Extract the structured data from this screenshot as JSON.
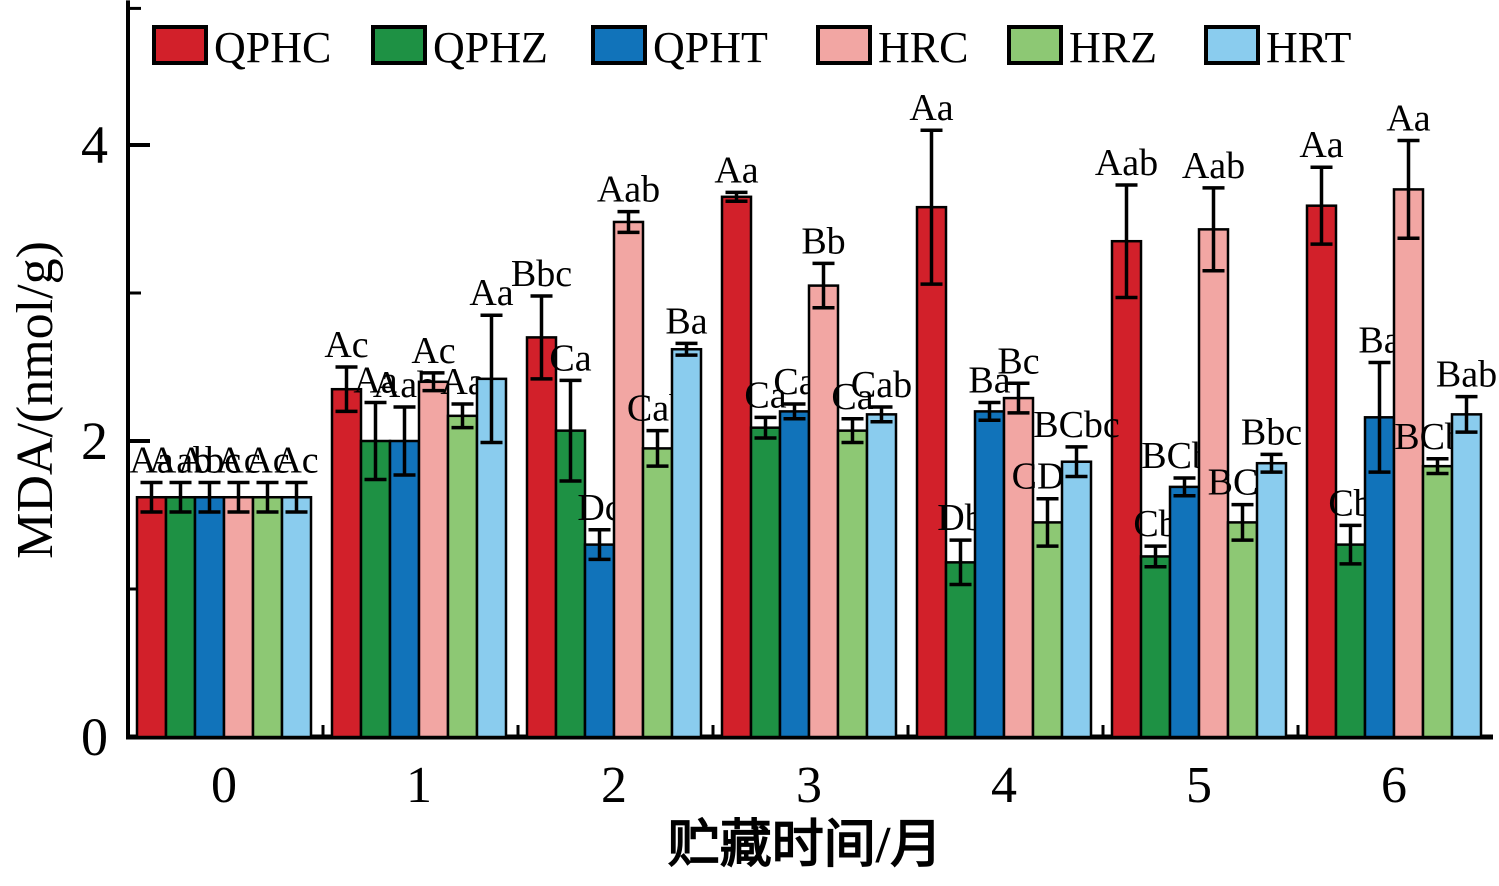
{
  "figure": {
    "background": "#ffffff",
    "axis_color": "#000000"
  },
  "chart_data": {
    "type": "bar",
    "title": "",
    "xlabel": "贮藏时间/月",
    "ylabel": "MDA/(nmol/g)",
    "categories": [
      "0",
      "1",
      "2",
      "3",
      "4",
      "5",
      "6"
    ],
    "ylim": [
      0,
      4.95
    ],
    "yticks_major": [
      0,
      2,
      4
    ],
    "yticks_minor": [
      1,
      3
    ],
    "grid": false,
    "legend_position": "top",
    "error_bars": true,
    "series": [
      {
        "name": "QPHC",
        "color": "#d2202a",
        "values": [
          1.62,
          2.35,
          2.7,
          3.65,
          3.58,
          3.35,
          3.59
        ],
        "errors": [
          0.1,
          0.15,
          0.28,
          0.03,
          0.52,
          0.38,
          0.26
        ],
        "sig_labels": [
          "Aa",
          "Ac",
          "Bbc",
          "Aa",
          "Aa",
          "Aab",
          "Aa"
        ]
      },
      {
        "name": "QPHZ",
        "color": "#1e9144",
        "values": [
          1.62,
          2.0,
          2.07,
          2.09,
          1.18,
          1.22,
          1.3
        ],
        "errors": [
          0.1,
          0.26,
          0.34,
          0.07,
          0.15,
          0.07,
          0.13
        ],
        "sig_labels": [
          "Aab",
          "Aa",
          "Ca",
          "Ca",
          "Db",
          "Cb",
          "Cb"
        ]
      },
      {
        "name": "QPHT",
        "color": "#1173ba",
        "values": [
          1.62,
          2.0,
          1.3,
          2.2,
          2.2,
          1.69,
          2.16
        ],
        "errors": [
          0.1,
          0.23,
          0.1,
          0.05,
          0.06,
          0.06,
          0.37
        ],
        "sig_labels": [
          "Abc",
          "Aab",
          "Dc",
          "Ca",
          "Ba",
          "BCbc",
          "Ba"
        ]
      },
      {
        "name": "HRC",
        "color": "#f2a6a3",
        "values": [
          1.62,
          2.4,
          3.48,
          3.05,
          2.29,
          3.43,
          3.7
        ],
        "errors": [
          0.1,
          0.06,
          0.07,
          0.15,
          0.1,
          0.28,
          0.33
        ],
        "sig_labels": [
          "Ac",
          "Ac",
          "Aab",
          "Bb",
          "Bc",
          "Aab",
          "Aa"
        ]
      },
      {
        "name": "HRZ",
        "color": "#8dc874",
        "values": [
          1.62,
          2.17,
          1.95,
          2.07,
          1.45,
          1.45,
          1.83
        ],
        "errors": [
          0.1,
          0.08,
          0.12,
          0.08,
          0.16,
          0.12,
          0.05
        ],
        "sig_labels": [
          "Ac",
          "Aa",
          "Cab",
          "Ca",
          "CDd",
          "BCd",
          "BCbc"
        ]
      },
      {
        "name": "HRT",
        "color": "#8accee",
        "values": [
          1.62,
          2.42,
          2.62,
          2.18,
          1.86,
          1.85,
          2.18
        ],
        "errors": [
          0.1,
          0.43,
          0.04,
          0.05,
          0.1,
          0.06,
          0.12
        ],
        "sig_labels": [
          "Ac",
          "Aa",
          "Ba",
          "Cab",
          "BCbc",
          "Bbc",
          "Bab"
        ]
      }
    ]
  }
}
